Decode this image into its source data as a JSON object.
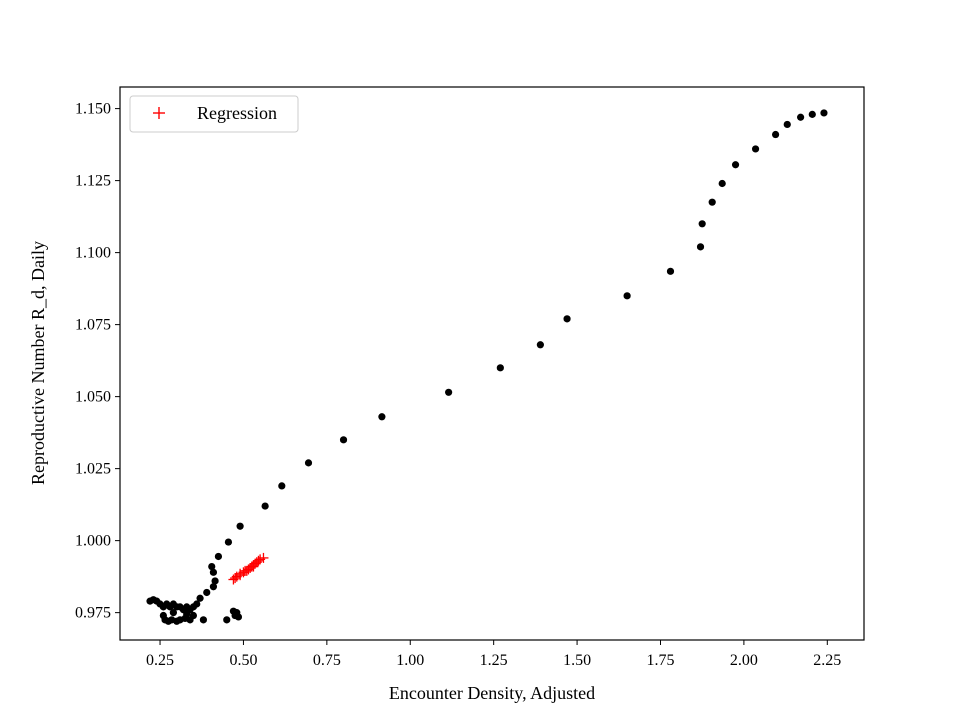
{
  "chart_data": {
    "type": "scatter",
    "xlabel": "Encounter Density, Adjusted",
    "ylabel": "Reproductive Number R_d, Daily",
    "xlim": [
      0.13,
      2.36
    ],
    "ylim": [
      0.9655,
      1.1575
    ],
    "xticks": [
      0.25,
      0.5,
      0.75,
      1.0,
      1.25,
      1.5,
      1.75,
      2.0,
      2.25
    ],
    "yticks": [
      0.975,
      1.0,
      1.025,
      1.05,
      1.075,
      1.1,
      1.125,
      1.15
    ],
    "xtick_labels": [
      "0.25",
      "0.50",
      "0.75",
      "1.00",
      "1.25",
      "1.50",
      "1.75",
      "2.00",
      "2.25"
    ],
    "ytick_labels": [
      "0.975",
      "1.000",
      "1.025",
      "1.050",
      "1.075",
      "1.100",
      "1.125",
      "1.150"
    ],
    "grid": false,
    "legend": {
      "placement": "upper-left",
      "entries": [
        "Regression"
      ]
    },
    "series": [
      {
        "marker": "dot",
        "color": "#000000",
        "points": [
          [
            0.22,
            0.979
          ],
          [
            0.23,
            0.9795
          ],
          [
            0.24,
            0.979
          ],
          [
            0.25,
            0.978
          ],
          [
            0.26,
            0.977
          ],
          [
            0.27,
            0.978
          ],
          [
            0.28,
            0.977
          ],
          [
            0.29,
            0.978
          ],
          [
            0.3,
            0.977
          ],
          [
            0.31,
            0.977
          ],
          [
            0.32,
            0.976
          ],
          [
            0.33,
            0.977
          ],
          [
            0.34,
            0.976
          ],
          [
            0.35,
            0.977
          ],
          [
            0.36,
            0.978
          ],
          [
            0.37,
            0.98
          ],
          [
            0.39,
            0.982
          ],
          [
            0.41,
            0.984
          ],
          [
            0.415,
            0.986
          ],
          [
            0.41,
            0.989
          ],
          [
            0.405,
            0.991
          ],
          [
            0.425,
            0.9945
          ],
          [
            0.455,
            0.9995
          ],
          [
            0.49,
            1.005
          ],
          [
            0.565,
            1.012
          ],
          [
            0.615,
            1.019
          ],
          [
            0.695,
            1.027
          ],
          [
            0.8,
            1.035
          ],
          [
            0.915,
            1.043
          ],
          [
            1.115,
            1.0515
          ],
          [
            1.27,
            1.06
          ],
          [
            1.39,
            1.068
          ],
          [
            1.47,
            1.077
          ],
          [
            1.65,
            1.085
          ],
          [
            1.78,
            1.0935
          ],
          [
            1.87,
            1.102
          ],
          [
            1.875,
            1.11
          ],
          [
            1.905,
            1.1175
          ],
          [
            1.935,
            1.124
          ],
          [
            1.975,
            1.1305
          ],
          [
            2.035,
            1.136
          ],
          [
            2.095,
            1.141
          ],
          [
            2.13,
            1.1445
          ],
          [
            2.17,
            1.147
          ],
          [
            2.205,
            1.148
          ],
          [
            2.24,
            1.1485
          ],
          [
            0.26,
            0.974
          ],
          [
            0.265,
            0.9725
          ],
          [
            0.275,
            0.972
          ],
          [
            0.285,
            0.9725
          ],
          [
            0.3,
            0.972
          ],
          [
            0.31,
            0.9725
          ],
          [
            0.325,
            0.973
          ],
          [
            0.34,
            0.9725
          ],
          [
            0.35,
            0.974
          ],
          [
            0.38,
            0.9725
          ],
          [
            0.45,
            0.9725
          ],
          [
            0.47,
            0.9755
          ],
          [
            0.48,
            0.975
          ],
          [
            0.475,
            0.974
          ],
          [
            0.485,
            0.9735
          ],
          [
            0.29,
            0.975
          ],
          [
            0.33,
            0.9745
          ]
        ]
      },
      {
        "name": "Regression",
        "marker": "plus",
        "color": "#ff0000",
        "points": [
          [
            0.47,
            0.9865
          ],
          [
            0.48,
            0.9875
          ],
          [
            0.49,
            0.988
          ],
          [
            0.5,
            0.989
          ],
          [
            0.51,
            0.9895
          ],
          [
            0.515,
            0.99
          ],
          [
            0.52,
            0.9905
          ],
          [
            0.525,
            0.991
          ],
          [
            0.53,
            0.9915
          ],
          [
            0.535,
            0.992
          ],
          [
            0.54,
            0.9925
          ],
          [
            0.545,
            0.993
          ],
          [
            0.55,
            0.9935
          ],
          [
            0.56,
            0.994
          ],
          [
            0.49,
            0.9885
          ],
          [
            0.505,
            0.9895
          ],
          [
            0.53,
            0.991
          ],
          [
            0.475,
            0.987
          ]
        ]
      }
    ]
  }
}
